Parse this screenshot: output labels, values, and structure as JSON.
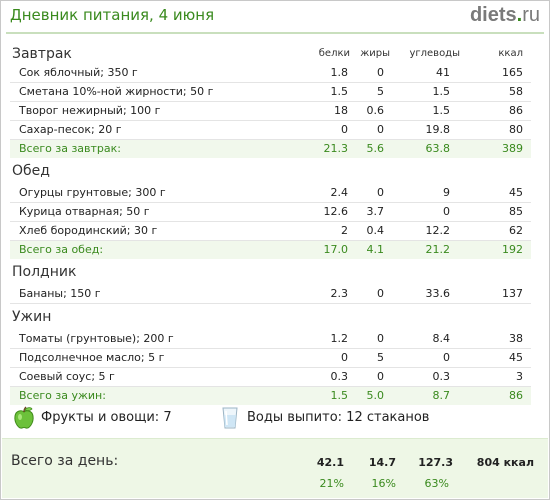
{
  "header": {
    "title": "Дневник питания, 4 июня",
    "brand_name": "diets",
    "brand_dot": ".",
    "brand_tld": "ru"
  },
  "columns": {
    "proteins": "белки",
    "fats": "жиры",
    "carbs": "углеводы",
    "kcal": "ккал"
  },
  "meals": [
    {
      "title": "Завтрак",
      "items": [
        {
          "name": "Сок яблочный; 350 г",
          "b": "1.8",
          "f": "0",
          "c": "41",
          "k": "165"
        },
        {
          "name": "Сметана 10%-ной жирности; 50 г",
          "b": "1.5",
          "f": "5",
          "c": "1.5",
          "k": "58"
        },
        {
          "name": "Творог нежирный; 100 г",
          "b": "18",
          "f": "0.6",
          "c": "1.5",
          "k": "86"
        },
        {
          "name": "Сахар-песок; 20 г",
          "b": "0",
          "f": "0",
          "c": "19.8",
          "k": "80"
        }
      ],
      "total": {
        "label": "Всего за завтрак:",
        "b": "21.3",
        "f": "5.6",
        "c": "63.8",
        "k": "389"
      }
    },
    {
      "title": "Обед",
      "items": [
        {
          "name": "Огурцы грунтовые; 300 г",
          "b": "2.4",
          "f": "0",
          "c": "9",
          "k": "45"
        },
        {
          "name": "Курица отварная; 50 г",
          "b": "12.6",
          "f": "3.7",
          "c": "0",
          "k": "85"
        },
        {
          "name": "Хлеб бородинский; 30 г",
          "b": "2",
          "f": "0.4",
          "c": "12.2",
          "k": "62"
        }
      ],
      "total": {
        "label": "Всего за обед:",
        "b": "17.0",
        "f": "4.1",
        "c": "21.2",
        "k": "192"
      }
    },
    {
      "title": "Полдник",
      "items": [
        {
          "name": "Бананы; 150 г",
          "b": "2.3",
          "f": "0",
          "c": "33.6",
          "k": "137"
        }
      ]
    },
    {
      "title": "Ужин",
      "items": [
        {
          "name": "Томаты (грунтовые); 200 г",
          "b": "1.2",
          "f": "0",
          "c": "8.4",
          "k": "38"
        },
        {
          "name": "Подсолнечное масло; 5 г",
          "b": "0",
          "f": "5",
          "c": "0",
          "k": "45"
        },
        {
          "name": "Соевый соус; 5 г",
          "b": "0.3",
          "f": "0",
          "c": "0.3",
          "k": "3"
        }
      ],
      "total": {
        "label": "Всего за ужин:",
        "b": "1.5",
        "f": "5.0",
        "c": "8.7",
        "k": "86"
      }
    }
  ],
  "extras": {
    "fruit_icon": "green-apple-icon",
    "fruit_text": "Фрукты и овощи: 7",
    "water_icon": "water-glass-icon",
    "water_text": "Воды выпито: 12 стаканов"
  },
  "day_total": {
    "label": "Всего за день:",
    "b": "42.1",
    "f": "14.7",
    "c": "127.3",
    "k": "804 ккал",
    "b_pct": "21%",
    "f_pct": "16%",
    "c_pct": "63%"
  },
  "colors": {
    "accent_green": "#3a8a1e",
    "total_row_bg": "#f1f8ec",
    "day_bar_bg": "#eef7e6",
    "brand_grey": "#7a7a7a"
  }
}
